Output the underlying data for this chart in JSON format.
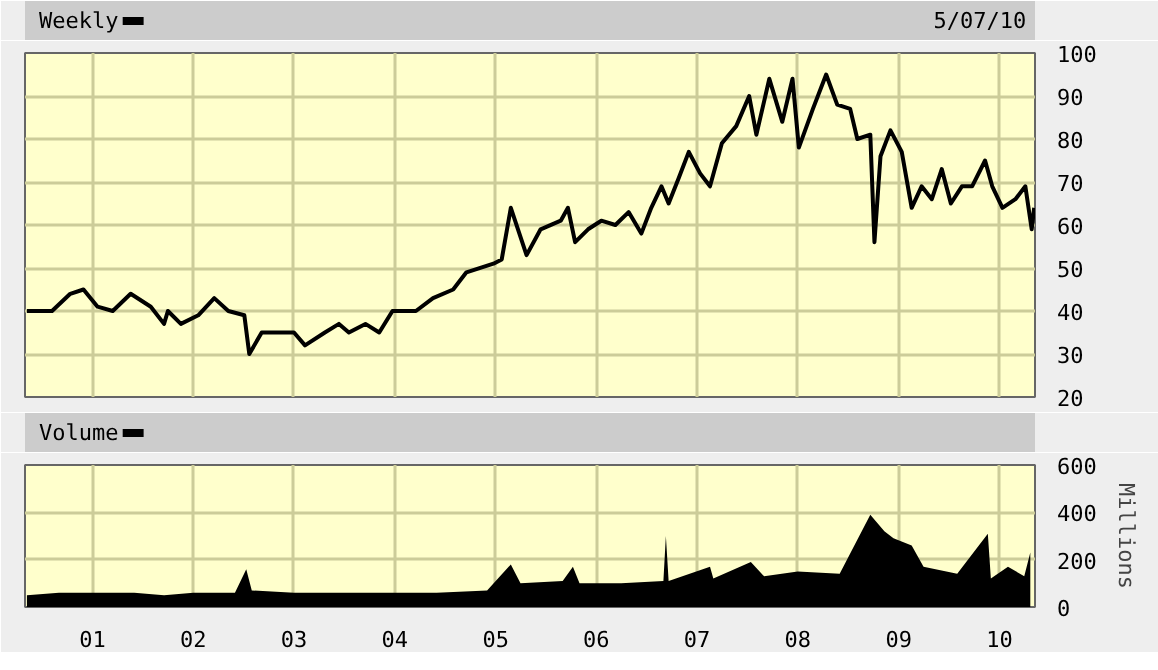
{
  "chart_data": [
    {
      "type": "line",
      "annotations": [
        "5/07/10"
      ],
      "legend": "top left",
      "grid": true,
      "tick_labels": "y",
      "xlim": [
        "2000-05-01",
        "2010-05-10"
      ],
      "xticks": [
        {
          "value": "2001-01-01",
          "label": null
        },
        {
          "value": "2002-01-01",
          "label": null
        },
        {
          "value": "2003-01-01",
          "label": null
        },
        {
          "value": "2004-01-01",
          "label": null
        },
        {
          "value": "2005-01-01",
          "label": null
        },
        {
          "value": "2006-01-01",
          "label": null
        },
        {
          "value": "2007-01-01",
          "label": null
        },
        {
          "value": "2008-01-01",
          "label": null
        },
        {
          "value": "2009-01-01",
          "label": null
        },
        {
          "value": "2010-01-01",
          "label": null
        }
      ],
      "ylim": [
        20,
        100
      ],
      "yticks": [
        20,
        30,
        40,
        50,
        60,
        70,
        80,
        90,
        100
      ],
      "x": [
        "2000-05-08",
        "2000-08-07",
        "2000-10-12",
        "2000-11-29",
        "2001-01-19",
        "2001-03-15",
        "2001-05-19",
        "2001-07-31",
        "2001-09-17",
        "2001-10-01",
        "2001-11-17",
        "2002-01-19",
        "2002-03-18",
        "2002-05-08",
        "2002-07-05",
        "2002-07-23",
        "2002-09-06",
        "2002-11-06",
        "2003-01-01",
        "2003-02-10",
        "2003-04-23",
        "2003-06-13",
        "2003-07-19",
        "2003-09-17",
        "2003-11-06",
        "2003-12-24",
        "2004-03-18",
        "2004-05-19",
        "2004-07-31",
        "2004-09-17",
        "2004-12-24",
        "2005-01-23",
        "2005-02-25",
        "2005-04-23",
        "2005-06-13",
        "2005-08-25",
        "2005-09-20",
        "2005-10-16",
        "2005-12-02",
        "2006-01-19",
        "2006-03-11",
        "2006-04-28",
        "2006-06-13",
        "2006-07-19",
        "2006-08-25",
        "2006-09-20",
        "2006-10-27",
        "2006-12-02",
        "2007-01-12",
        "2007-02-17",
        "2007-04-01",
        "2007-05-23",
        "2007-07-09",
        "2007-08-04",
        "2007-09-20",
        "2007-11-06",
        "2007-12-13",
        "2008-01-05",
        "2008-02-25",
        "2008-04-13",
        "2008-05-23",
        "2008-07-09",
        "2008-08-04",
        "2008-09-20",
        "2008-10-05",
        "2008-10-27",
        "2008-12-02",
        "2009-01-12",
        "2009-02-17",
        "2009-03-25",
        "2009-05-01",
        "2009-06-06",
        "2009-07-09",
        "2009-08-18",
        "2009-09-24",
        "2009-11-10",
        "2009-12-06",
        "2010-01-12",
        "2010-02-28",
        "2010-04-05",
        "2010-04-28",
        "2010-05-07"
      ],
      "series": [
        {
          "name": "Weekly",
          "color": "#000000",
          "values": [
            40,
            40,
            44,
            45,
            41,
            40,
            44,
            41,
            37,
            40,
            37,
            39,
            43,
            40,
            39,
            30,
            35,
            35,
            35,
            32,
            35,
            37,
            35,
            37,
            35,
            40,
            40,
            43,
            45,
            49,
            51,
            52,
            64,
            53,
            59,
            61,
            64,
            56,
            59,
            61,
            60,
            63,
            58,
            64,
            69,
            65,
            71,
            77,
            72,
            69,
            79,
            83,
            90,
            81,
            94,
            84,
            94,
            78,
            87,
            95,
            88,
            87,
            80,
            81,
            56,
            76,
            82,
            77,
            64,
            69,
            66,
            73,
            65,
            69,
            69,
            75,
            69,
            64,
            66,
            69,
            59,
            64
          ]
        }
      ]
    },
    {
      "type": "area",
      "ylabel": "Millions",
      "legend": "top left",
      "grid": true,
      "xlim": [
        "2000-05-01",
        "2010-05-10"
      ],
      "xticks": [
        {
          "value": "2001-01-01",
          "label": "01"
        },
        {
          "value": "2002-01-01",
          "label": "02"
        },
        {
          "value": "2003-01-01",
          "label": "03"
        },
        {
          "value": "2004-01-01",
          "label": "04"
        },
        {
          "value": "2005-01-01",
          "label": "05"
        },
        {
          "value": "2006-01-01",
          "label": "06"
        },
        {
          "value": "2007-01-01",
          "label": "07"
        },
        {
          "value": "2008-01-01",
          "label": "08"
        },
        {
          "value": "2009-01-01",
          "label": "09"
        },
        {
          "value": "2010-01-01",
          "label": "10"
        }
      ],
      "ylim": [
        0,
        600
      ],
      "yticks": [
        0,
        200,
        400,
        600
      ],
      "x": [
        "2000-05-08",
        "2000-09-01",
        "2001-01-01",
        "2001-06-01",
        "2001-09-17",
        "2002-01-01",
        "2002-06-01",
        "2002-07-12",
        "2002-08-01",
        "2003-01-01",
        "2003-06-01",
        "2004-01-01",
        "2004-06-01",
        "2004-12-01",
        "2005-02-25",
        "2005-04-01",
        "2005-09-01",
        "2005-10-08",
        "2005-11-01",
        "2006-04-01",
        "2006-09-01",
        "2006-09-10",
        "2006-09-20",
        "2007-02-17",
        "2007-03-01",
        "2007-07-15",
        "2007-09-01",
        "2008-01-01",
        "2008-06-01",
        "2008-09-20",
        "2008-11-10",
        "2008-12-13",
        "2009-02-17",
        "2009-04-01",
        "2009-08-01",
        "2009-11-20",
        "2009-12-01",
        "2010-02-01",
        "2010-04-01",
        "2010-04-23"
      ],
      "series": [
        {
          "name": "Volume",
          "color": "#000000",
          "values": [
            50,
            60,
            60,
            60,
            50,
            60,
            60,
            160,
            70,
            60,
            60,
            60,
            60,
            70,
            180,
            100,
            110,
            170,
            100,
            100,
            110,
            300,
            110,
            170,
            120,
            190,
            130,
            150,
            140,
            390,
            320,
            290,
            260,
            170,
            140,
            310,
            120,
            170,
            130,
            230
          ]
        }
      ]
    }
  ]
}
